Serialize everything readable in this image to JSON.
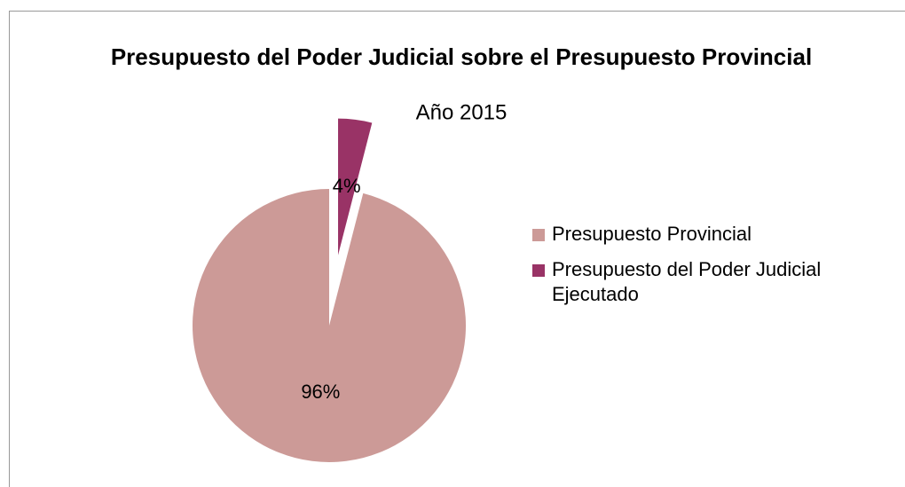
{
  "chart_data": {
    "type": "pie",
    "title": "Presupuesto del Poder Judicial sobre el Presupuesto Provincial",
    "subtitle": "Año 2015",
    "categories": [
      "Presupuesto Provincial",
      "Presupuesto del Poder Judicial Ejecutado"
    ],
    "values": [
      96,
      4
    ],
    "value_labels": [
      "96%",
      "4%"
    ],
    "colors": [
      "#cc9a97",
      "#993366"
    ],
    "exploded": [
      false,
      true
    ],
    "legend": "right"
  }
}
